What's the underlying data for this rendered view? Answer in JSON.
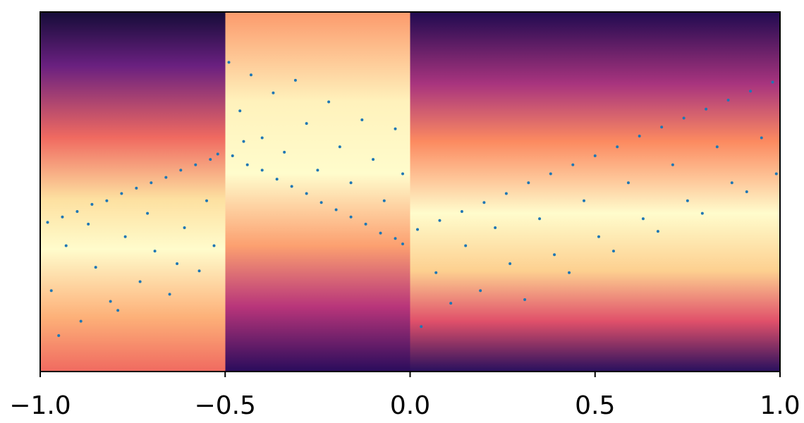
{
  "chart_data": {
    "type": "scatter",
    "color": "#1f77b4",
    "xlim": [
      -1,
      1
    ],
    "ylim": [
      -1,
      1
    ],
    "xticks": [
      {
        "value": -1,
        "label": "−1.0"
      },
      {
        "value": -0.5,
        "label": "−0.5"
      },
      {
        "value": 0,
        "label": "0.0"
      },
      {
        "value": 0.5,
        "label": "0.5"
      },
      {
        "value": 1,
        "label": "1.0"
      }
    ],
    "series": [
      {
        "x": [
          -0.98,
          -0.94,
          -0.9,
          -0.86,
          -0.82,
          -0.78,
          -0.74,
          -0.7,
          -0.66,
          -0.62,
          -0.58,
          -0.54,
          -0.52,
          -0.97,
          -0.93,
          -0.89,
          -0.85,
          -0.81,
          -0.77,
          -0.73,
          -0.69,
          -0.65,
          -0.61,
          -0.57,
          -0.53,
          -0.95,
          -0.87,
          -0.79,
          -0.71,
          -0.63,
          -0.55,
          -0.48,
          -0.44,
          -0.4,
          -0.36,
          -0.32,
          -0.28,
          -0.24,
          -0.2,
          -0.16,
          -0.12,
          -0.08,
          -0.04,
          -0.02,
          -0.49,
          -0.46,
          -0.43,
          -0.4,
          -0.37,
          -0.34,
          -0.31,
          -0.28,
          -0.25,
          -0.22,
          -0.19,
          -0.16,
          -0.13,
          -0.1,
          -0.07,
          -0.04,
          -0.02,
          -0.45,
          0.02,
          0.08,
          0.14,
          0.2,
          0.26,
          0.32,
          0.38,
          0.44,
          0.5,
          0.56,
          0.62,
          0.68,
          0.74,
          0.8,
          0.86,
          0.92,
          0.98,
          0.03,
          0.07,
          0.11,
          0.15,
          0.19,
          0.23,
          0.27,
          0.31,
          0.35,
          0.39,
          0.43,
          0.47,
          0.51,
          0.55,
          0.59,
          0.63,
          0.67,
          0.71,
          0.75,
          0.79,
          0.83,
          0.87,
          0.91,
          0.95,
          0.99
        ],
        "values": [
          -0.17,
          -0.14,
          -0.11,
          -0.07,
          -0.05,
          -0.01,
          0.02,
          0.05,
          0.08,
          0.12,
          0.15,
          0.18,
          0.21,
          -0.55,
          -0.3,
          -0.72,
          -0.42,
          -0.61,
          -0.25,
          -0.5,
          -0.33,
          -0.57,
          -0.2,
          -0.44,
          -0.3,
          -0.8,
          -0.18,
          -0.66,
          -0.12,
          -0.4,
          -0.05,
          0.2,
          0.15,
          0.12,
          0.07,
          0.03,
          -0.01,
          -0.06,
          -0.1,
          -0.14,
          -0.18,
          -0.23,
          -0.26,
          -0.29,
          0.72,
          0.45,
          0.65,
          0.3,
          0.55,
          0.22,
          0.62,
          0.38,
          0.12,
          0.5,
          0.25,
          0.05,
          0.4,
          0.18,
          -0.05,
          0.35,
          0.1,
          0.28,
          -0.21,
          -0.16,
          -0.11,
          -0.06,
          -0.01,
          0.05,
          0.1,
          0.15,
          0.2,
          0.25,
          0.31,
          0.36,
          0.41,
          0.46,
          0.51,
          0.56,
          0.61,
          -0.75,
          -0.45,
          -0.62,
          -0.3,
          -0.55,
          -0.2,
          -0.4,
          -0.6,
          -0.15,
          -0.35,
          -0.45,
          -0.05,
          -0.25,
          -0.33,
          0.05,
          -0.15,
          -0.22,
          0.15,
          -0.05,
          -0.12,
          0.25,
          0.05,
          0.0,
          0.3,
          0.1
        ]
      }
    ]
  }
}
